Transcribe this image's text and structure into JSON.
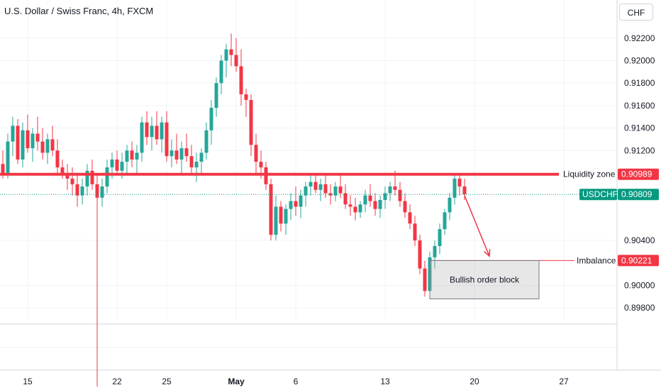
{
  "header": {
    "title": "U.S. Dollar / Swiss Franc, 4h, FXCM",
    "currency": "CHF"
  },
  "colors": {
    "up": "#26a69a",
    "down": "#f23645",
    "level": "#f23645",
    "current": "#089981"
  },
  "chart_data": {
    "type": "candlestick",
    "title": "U.S. Dollar / Swiss Franc, 4h, FXCM",
    "ylim": [
      0.897,
      0.9235
    ],
    "yticks": [
      "0.92200",
      "0.92000",
      "0.91800",
      "0.91600",
      "0.91400",
      "0.91200",
      "0.90400",
      "0.90000",
      "0.89800"
    ],
    "xticks": [
      {
        "label": "15",
        "bar": 5,
        "bold": false
      },
      {
        "label": "22",
        "bar": 23,
        "bold": false
      },
      {
        "label": "25",
        "bar": 33,
        "bold": false
      },
      {
        "label": "May",
        "bar": 47,
        "bold": true
      },
      {
        "label": "6",
        "bar": 59,
        "bold": false
      },
      {
        "label": "13",
        "bar": 77,
        "bold": false
      },
      {
        "label": "20",
        "bar": 95,
        "bold": false
      },
      {
        "label": "27",
        "bar": 113,
        "bold": false
      }
    ],
    "levels": [
      {
        "label": "Liquidity zone",
        "value": 0.90989,
        "value_text": "0.90989",
        "style": "thick"
      },
      {
        "label": "Imbalance",
        "value": 0.90221,
        "value_text": "0.90221",
        "style": "thin"
      }
    ],
    "current": {
      "symbol": "USDCHF",
      "value": 0.90809,
      "value_text": "0.90809"
    },
    "annotations": [
      {
        "type": "box",
        "text": "Bullish order block",
        "x0_bar": 86,
        "x1_bar": 108,
        "y_top": 0.90221,
        "y_bottom": 0.8988
      },
      {
        "type": "arrow",
        "from_bar": 93,
        "from_y": 0.908,
        "to_bar": 98,
        "to_y": 0.9026
      }
    ],
    "series": [
      [
        0.9108,
        0.912,
        0.9095,
        0.91
      ],
      [
        0.91,
        0.9135,
        0.9095,
        0.9128
      ],
      [
        0.9128,
        0.915,
        0.9115,
        0.9142
      ],
      [
        0.9142,
        0.9148,
        0.9108,
        0.9112
      ],
      [
        0.9112,
        0.9145,
        0.9105,
        0.9138
      ],
      [
        0.9138,
        0.9152,
        0.9118,
        0.9122
      ],
      [
        0.9122,
        0.914,
        0.911,
        0.9135
      ],
      [
        0.9135,
        0.915,
        0.912,
        0.9128
      ],
      [
        0.9128,
        0.914,
        0.9112,
        0.9118
      ],
      [
        0.9118,
        0.9135,
        0.9108,
        0.913
      ],
      [
        0.913,
        0.9142,
        0.9115,
        0.912
      ],
      [
        0.912,
        0.913,
        0.91,
        0.9105
      ],
      [
        0.9105,
        0.9112,
        0.9095,
        0.9098
      ],
      [
        0.9098,
        0.9108,
        0.9085,
        0.9095
      ],
      [
        0.9095,
        0.9105,
        0.908,
        0.909
      ],
      [
        0.909,
        0.91,
        0.907,
        0.908
      ],
      [
        0.908,
        0.9095,
        0.9072,
        0.9088
      ],
      [
        0.9088,
        0.9108,
        0.908,
        0.9102
      ],
      [
        0.9102,
        0.9112,
        0.9085,
        0.909
      ],
      [
        0.909,
        0.9098,
        0.891,
        0.9078
      ],
      [
        0.9078,
        0.9095,
        0.907,
        0.9088
      ],
      [
        0.9088,
        0.9112,
        0.9082,
        0.9105
      ],
      [
        0.9105,
        0.9118,
        0.9095,
        0.9112
      ],
      [
        0.9112,
        0.912,
        0.9098,
        0.9102
      ],
      [
        0.9102,
        0.9118,
        0.9095,
        0.911
      ],
      [
        0.911,
        0.9125,
        0.91,
        0.912
      ],
      [
        0.912,
        0.9128,
        0.9105,
        0.9112
      ],
      [
        0.9112,
        0.9125,
        0.91,
        0.9118
      ],
      [
        0.9118,
        0.915,
        0.911,
        0.9145
      ],
      [
        0.9145,
        0.9155,
        0.9125,
        0.9132
      ],
      [
        0.9132,
        0.915,
        0.912,
        0.9142
      ],
      [
        0.9142,
        0.9155,
        0.9125,
        0.913
      ],
      [
        0.913,
        0.915,
        0.9118,
        0.9145
      ],
      [
        0.9145,
        0.9155,
        0.911,
        0.9115
      ],
      [
        0.9115,
        0.913,
        0.9105,
        0.912
      ],
      [
        0.912,
        0.9135,
        0.9108,
        0.9112
      ],
      [
        0.9112,
        0.9128,
        0.91,
        0.9122
      ],
      [
        0.9122,
        0.9135,
        0.911,
        0.9115
      ],
      [
        0.9115,
        0.9125,
        0.9098,
        0.9105
      ],
      [
        0.9105,
        0.9118,
        0.9092,
        0.911
      ],
      [
        0.911,
        0.9122,
        0.91,
        0.9118
      ],
      [
        0.9118,
        0.9145,
        0.9112,
        0.9138
      ],
      [
        0.9138,
        0.9165,
        0.9125,
        0.9158
      ],
      [
        0.9158,
        0.9185,
        0.915,
        0.918
      ],
      [
        0.918,
        0.9205,
        0.917,
        0.92
      ],
      [
        0.92,
        0.9215,
        0.9185,
        0.921
      ],
      [
        0.921,
        0.9224,
        0.9195,
        0.9205
      ],
      [
        0.9205,
        0.922,
        0.919,
        0.9195
      ],
      [
        0.9195,
        0.921,
        0.916,
        0.917
      ],
      [
        0.917,
        0.9175,
        0.915,
        0.9165
      ],
      [
        0.9165,
        0.917,
        0.9115,
        0.9125
      ],
      [
        0.9125,
        0.9135,
        0.91,
        0.911
      ],
      [
        0.911,
        0.912,
        0.9095,
        0.9105
      ],
      [
        0.9105,
        0.911,
        0.9085,
        0.909
      ],
      [
        0.909,
        0.9095,
        0.904,
        0.9045
      ],
      [
        0.9045,
        0.908,
        0.904,
        0.907
      ],
      [
        0.907,
        0.9075,
        0.9048,
        0.9055
      ],
      [
        0.9055,
        0.9072,
        0.9045,
        0.9068
      ],
      [
        0.9068,
        0.9082,
        0.9058,
        0.9075
      ],
      [
        0.9075,
        0.9088,
        0.9062,
        0.907
      ],
      [
        0.907,
        0.9085,
        0.906,
        0.908
      ],
      [
        0.908,
        0.9092,
        0.907,
        0.9088
      ],
      [
        0.9088,
        0.9098,
        0.908,
        0.9092
      ],
      [
        0.9092,
        0.91,
        0.9082,
        0.9085
      ],
      [
        0.9085,
        0.9095,
        0.9075,
        0.909
      ],
      [
        0.909,
        0.9098,
        0.9078,
        0.9082
      ],
      [
        0.9082,
        0.909,
        0.9072,
        0.908
      ],
      [
        0.908,
        0.9092,
        0.9075,
        0.9088
      ],
      [
        0.9088,
        0.91,
        0.9078,
        0.9082
      ],
      [
        0.9082,
        0.909,
        0.9068,
        0.9072
      ],
      [
        0.9072,
        0.908,
        0.9062,
        0.907
      ],
      [
        0.907,
        0.9078,
        0.9058,
        0.9065
      ],
      [
        0.9065,
        0.9075,
        0.906,
        0.9072
      ],
      [
        0.9072,
        0.9085,
        0.9065,
        0.908
      ],
      [
        0.908,
        0.909,
        0.907,
        0.9075
      ],
      [
        0.9075,
        0.9082,
        0.9062,
        0.9068
      ],
      [
        0.9068,
        0.908,
        0.906,
        0.9076
      ],
      [
        0.9076,
        0.9088,
        0.9068,
        0.9082
      ],
      [
        0.9082,
        0.9092,
        0.9075,
        0.9088
      ],
      [
        0.9088,
        0.9102,
        0.908,
        0.9085
      ],
      [
        0.9085,
        0.9092,
        0.907,
        0.9075
      ],
      [
        0.9075,
        0.9082,
        0.906,
        0.9065
      ],
      [
        0.9065,
        0.9072,
        0.905,
        0.9055
      ],
      [
        0.9055,
        0.9062,
        0.9035,
        0.904
      ],
      [
        0.904,
        0.9045,
        0.901,
        0.9015
      ],
      [
        0.9015,
        0.9022,
        0.899,
        0.8995
      ],
      [
        0.8995,
        0.903,
        0.8988,
        0.9025
      ],
      [
        0.9025,
        0.904,
        0.9015,
        0.9035
      ],
      [
        0.9035,
        0.9055,
        0.9028,
        0.905
      ],
      [
        0.905,
        0.9068,
        0.9045,
        0.9065
      ],
      [
        0.9065,
        0.9082,
        0.9058,
        0.9078
      ],
      [
        0.9078,
        0.91,
        0.9072,
        0.9095
      ],
      [
        0.9095,
        0.91,
        0.908,
        0.9088
      ],
      [
        0.9088,
        0.9095,
        0.9076,
        0.9081
      ]
    ]
  }
}
